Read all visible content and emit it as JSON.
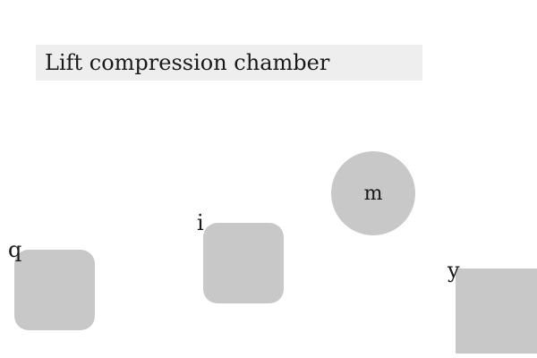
{
  "title": "Lift compression chamber",
  "shapes": {
    "q": {
      "label": "q"
    },
    "i": {
      "label": "i"
    },
    "m": {
      "label": "m"
    },
    "y": {
      "label": "y"
    }
  },
  "colors": {
    "title_background": "#eeeeee",
    "shape_fill": "#c8c8c8",
    "background": "#ffffff"
  }
}
